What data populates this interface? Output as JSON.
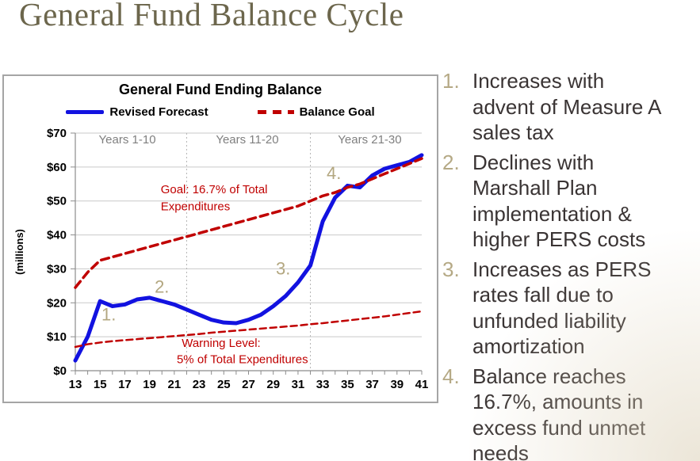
{
  "page": {
    "title": "General Fund Balance Cycle"
  },
  "chart": {
    "title": "General Fund Ending Balance",
    "legend": [
      {
        "label": "Revised Forecast"
      },
      {
        "label": "Balance Goal"
      }
    ]
  },
  "chart_data": {
    "type": "line",
    "title": "General Fund Ending Balance",
    "xlabel": "",
    "ylabel": "(millions)",
    "ylim": [
      0,
      70
    ],
    "y_tick_step": 10,
    "y_tick_prefix": "$",
    "grid": "horizontal",
    "legend_position": "top",
    "x": [
      13,
      14,
      15,
      16,
      17,
      18,
      19,
      20,
      21,
      22,
      23,
      24,
      25,
      26,
      27,
      28,
      29,
      30,
      31,
      32,
      33,
      34,
      35,
      36,
      37,
      38,
      39,
      40,
      41
    ],
    "x_tick_labels": [
      "13",
      "15",
      "17",
      "19",
      "21",
      "23",
      "25",
      "27",
      "29",
      "31",
      "33",
      "35",
      "37",
      "39",
      "41"
    ],
    "series": [
      {
        "name": "Revised Forecast",
        "color": "#1212e0",
        "style": "solid",
        "width": 5,
        "values": [
          3,
          10,
          20.5,
          19,
          19.5,
          21,
          21.5,
          20.5,
          19.5,
          18,
          16.5,
          15,
          14.2,
          14,
          15,
          16.5,
          19,
          22,
          26,
          31,
          44,
          51,
          54.5,
          54,
          57.5,
          59.5,
          60.5,
          61.5,
          63.5
        ]
      },
      {
        "name": "Balance Goal",
        "color": "#c00000",
        "style": "dashed",
        "width": 3.5,
        "dash": "10 6",
        "values": [
          24.5,
          29,
          32.5,
          33.5,
          34.5,
          35.5,
          36.5,
          37.5,
          38.5,
          39.5,
          40.5,
          41.5,
          42.5,
          43.5,
          44.5,
          45.5,
          46.5,
          47.5,
          48.5,
          50,
          51.5,
          52.5,
          54,
          55,
          56.5,
          58,
          59.5,
          61,
          62.5
        ]
      },
      {
        "name": "Warning Level",
        "color": "#c00000",
        "style": "dashed",
        "width": 2.5,
        "dash": "8 5",
        "values": [
          7,
          7.8,
          8.3,
          8.7,
          9,
          9.3,
          9.6,
          9.9,
          10.2,
          10.5,
          10.8,
          11.2,
          11.5,
          11.8,
          12.1,
          12.4,
          12.7,
          13,
          13.3,
          13.7,
          14,
          14.4,
          14.8,
          15.2,
          15.6,
          16,
          16.5,
          17,
          17.5
        ]
      }
    ],
    "dividers": [
      22,
      32
    ],
    "section_labels": [
      {
        "text": "Years 1-10",
        "year": 17.2,
        "value": 67
      },
      {
        "text": "Years 11-20",
        "year": 26.9,
        "value": 67
      },
      {
        "text": "Years 21-30",
        "year": 36.8,
        "value": 67
      }
    ],
    "annotations": [
      {
        "text": "1.",
        "year": 15.7,
        "value": 14.8,
        "class": "marker"
      },
      {
        "text": "2.",
        "year": 20.0,
        "value": 23.0,
        "class": "marker"
      },
      {
        "text": "3.",
        "year": 29.8,
        "value": 28.3,
        "class": "marker"
      },
      {
        "text": "4.",
        "year": 33.9,
        "value": 56.5,
        "class": "marker"
      },
      {
        "text": "Goal: 16.7% of Total",
        "year": 19.9,
        "value": 52.3,
        "anchor": "start",
        "class": "red-note"
      },
      {
        "text": "Expenditures",
        "year": 19.9,
        "value": 47.3,
        "anchor": "start",
        "class": "red-note"
      },
      {
        "text": "Warning Level:",
        "year": 21.6,
        "value": 7.0,
        "anchor": "start",
        "class": "red-note"
      },
      {
        "text": "5% of Total Expenditures",
        "year": 21.2,
        "value": 2.2,
        "anchor": "start",
        "class": "red-note"
      }
    ]
  },
  "notes": {
    "items": [
      {
        "number": "1.",
        "text": "Increases with\nadvent of Measure A\nsales tax"
      },
      {
        "number": "2.",
        "text": "Declines with\nMarshall Plan\nimplementation &\nhigher PERS costs"
      },
      {
        "number": "3.",
        "text": "Increases as PERS\nrates fall due to\nunfunded liability\namortization"
      },
      {
        "number": "4.",
        "text": "Balance reaches\n16.7%, amounts in\nexcess fund unmet\nneeds"
      }
    ]
  }
}
